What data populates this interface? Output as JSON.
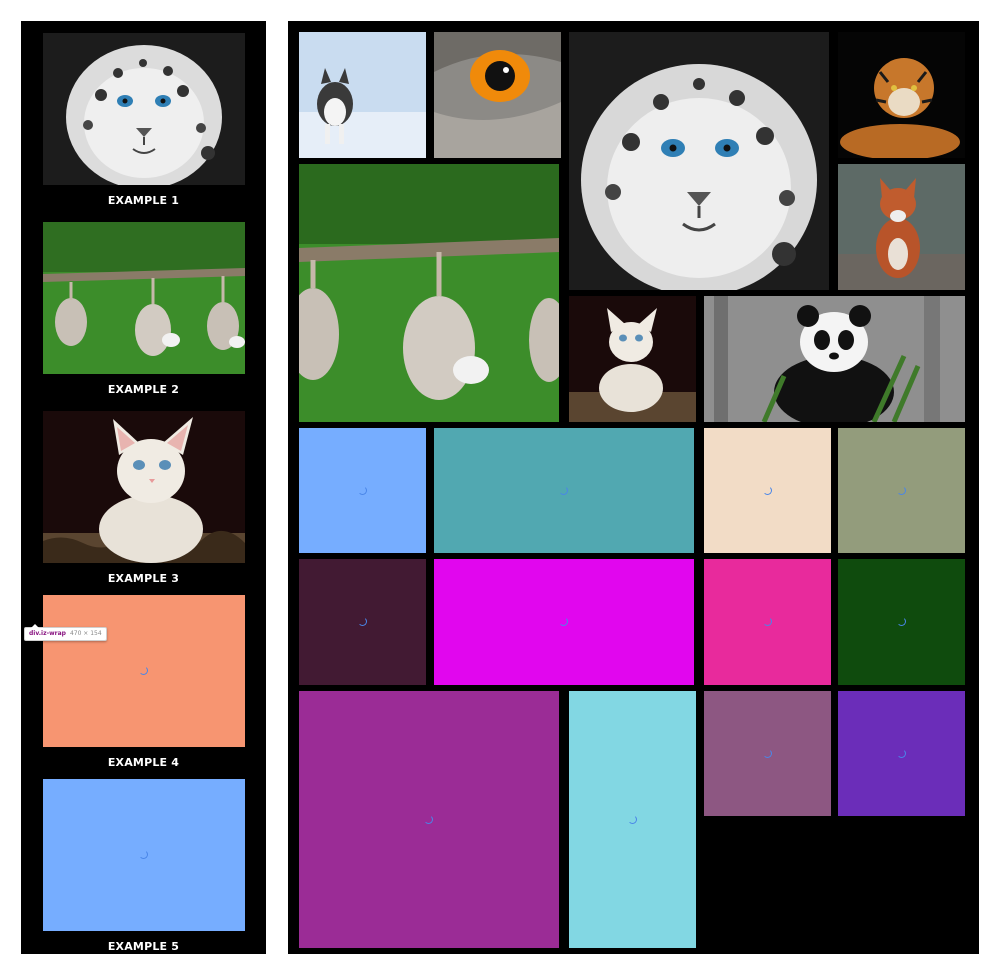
{
  "examples": [
    {
      "label": "EXAMPLE 1",
      "image": "snow-leopard"
    },
    {
      "label": "EXAMPLE 2",
      "image": "opossums"
    },
    {
      "label": "EXAMPLE 3",
      "image": "kitten"
    },
    {
      "label": "EXAMPLE 4",
      "color": "#f79571"
    },
    {
      "label": "EXAMPLE 5",
      "color": "#76adff"
    }
  ],
  "devtools_tooltip": {
    "selector": "div.iz-wrap",
    "size": "470 × 154"
  },
  "gallery": {
    "photos": [
      "husky",
      "owl-eye",
      "snow-leopard",
      "tiger",
      "fox",
      "opossums",
      "kitten",
      "panda"
    ],
    "tile_colors": [
      "#76adff",
      "#51a8b1",
      "#f2dcc6",
      "#939c7c",
      "#421a33",
      "#e106ee",
      "#e82a9c",
      "#0f4b0d",
      "#9b2c96",
      "#82d7e3",
      "#8d5782",
      "#6b2db9"
    ]
  }
}
